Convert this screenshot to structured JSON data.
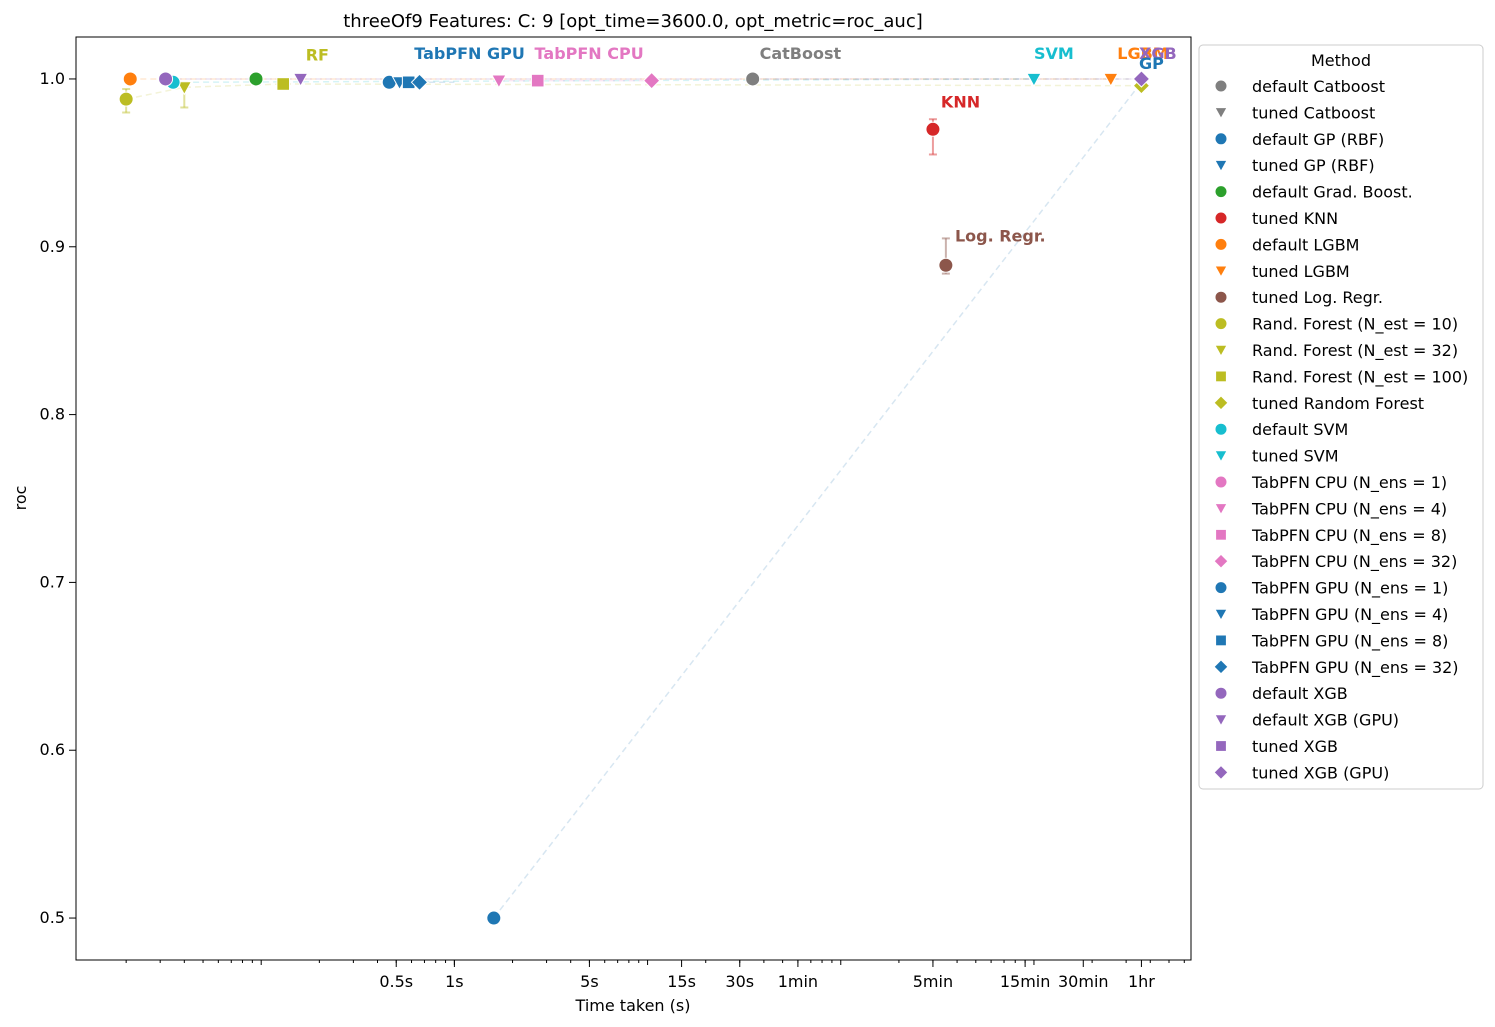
{
  "chart_data": {
    "type": "scatter",
    "title": "threeOf9 Features: C: 9 [opt_time=3600.0, opt_metric=roc_auc]",
    "xlabel": "Time taken (s)",
    "ylabel": "roc",
    "x_scale": "log",
    "xlim": [
      0.011,
      6500
    ],
    "ylim": [
      0.475,
      1.025
    ],
    "x_ticks": [
      {
        "value": 0.5,
        "label": "0.5s"
      },
      {
        "value": 1,
        "label": "1s"
      },
      {
        "value": 5,
        "label": "5s"
      },
      {
        "value": 15,
        "label": "15s"
      },
      {
        "value": 30,
        "label": "30s"
      },
      {
        "value": 60,
        "label": "1min"
      },
      {
        "value": 300,
        "label": "5min"
      },
      {
        "value": 900,
        "label": "15min"
      },
      {
        "value": 1800,
        "label": "30min"
      },
      {
        "value": 3600,
        "label": "1hr"
      }
    ],
    "y_ticks": [
      {
        "value": 0.5,
        "label": "0.5"
      },
      {
        "value": 0.6,
        "label": "0.6"
      },
      {
        "value": 0.7,
        "label": "0.7"
      },
      {
        "value": 0.8,
        "label": "0.8"
      },
      {
        "value": 0.9,
        "label": "0.9"
      },
      {
        "value": 1.0,
        "label": "1.0"
      }
    ],
    "grid": false,
    "legend_title": "Method",
    "legend_placement": "outside-right",
    "series": [
      {
        "name": "default Catboost",
        "marker": "circle",
        "color": "#7f7f7f",
        "x": 35,
        "y": 1.0
      },
      {
        "name": "tuned Catboost",
        "marker": "triangle",
        "color": "#7f7f7f",
        "x": null,
        "y": null
      },
      {
        "name": "default GP (RBF)",
        "marker": "circle",
        "color": "#1f77b4",
        "x": 1.6,
        "y": 0.5
      },
      {
        "name": "tuned GP (RBF)",
        "marker": "triangle",
        "color": "#1f77b4",
        "x": 3600,
        "y": 0.998
      },
      {
        "name": "default Grad. Boost.",
        "marker": "circle",
        "color": "#2ca02c",
        "x": 0.094,
        "y": 1.0
      },
      {
        "name": "tuned KNN",
        "marker": "circle",
        "color": "#d62728",
        "x": 300,
        "y": 0.97,
        "err_low": 0.955,
        "err_high": 0.976
      },
      {
        "name": "default LGBM",
        "marker": "circle",
        "color": "#ff7f0e",
        "x": 0.021,
        "y": 1.0
      },
      {
        "name": "tuned LGBM",
        "marker": "triangle",
        "color": "#ff7f0e",
        "x": 2500,
        "y": 1.0
      },
      {
        "name": "tuned Log. Regr.",
        "marker": "circle",
        "color": "#8c564b",
        "x": 350,
        "y": 0.889,
        "err_low": 0.884,
        "err_high": 0.905
      },
      {
        "name": "Rand. Forest (N_est =  10)",
        "marker": "circle",
        "color": "#bcbd22",
        "x": 0.02,
        "y": 0.988,
        "err_low": 0.98,
        "err_high": 0.994
      },
      {
        "name": "Rand. Forest (N_est =  32)",
        "marker": "triangle",
        "color": "#bcbd22",
        "x": 0.04,
        "y": 0.995,
        "err_low": 0.983,
        "err_high": 0.998
      },
      {
        "name": "Rand. Forest (N_est = 100)",
        "marker": "square",
        "color": "#bcbd22",
        "x": 0.13,
        "y": 0.997
      },
      {
        "name": "tuned Random Forest",
        "marker": "diamond",
        "color": "#bcbd22",
        "x": 3600,
        "y": 0.996
      },
      {
        "name": "default SVM",
        "marker": "circle",
        "color": "#17becf",
        "x": 0.035,
        "y": 0.998
      },
      {
        "name": "tuned SVM",
        "marker": "triangle",
        "color": "#17becf",
        "x": 1000,
        "y": 1.0
      },
      {
        "name": "TabPFN CPU (N_ens =  1)",
        "marker": "circle",
        "color": "#e377c2",
        "x": null,
        "y": null
      },
      {
        "name": "TabPFN CPU (N_ens =  4)",
        "marker": "triangle",
        "color": "#e377c2",
        "x": 1.7,
        "y": 0.999
      },
      {
        "name": "TabPFN CPU (N_ens =  8)",
        "marker": "square",
        "color": "#e377c2",
        "x": 2.7,
        "y": 0.999
      },
      {
        "name": "TabPFN CPU (N_ens = 32)",
        "marker": "diamond",
        "color": "#e377c2",
        "x": 10.5,
        "y": 0.999
      },
      {
        "name": "TabPFN GPU (N_ens =  1)",
        "marker": "circle",
        "color": "#1f77b4",
        "x": 0.46,
        "y": 0.998
      },
      {
        "name": "TabPFN GPU (N_ens =  4)",
        "marker": "triangle",
        "color": "#1f77b4",
        "x": 0.52,
        "y": 0.998
      },
      {
        "name": "TabPFN GPU (N_ens =  8)",
        "marker": "square",
        "color": "#1f77b4",
        "x": 0.58,
        "y": 0.998
      },
      {
        "name": "TabPFN GPU (N_ens = 32)",
        "marker": "diamond",
        "color": "#1f77b4",
        "x": 0.66,
        "y": 0.998
      },
      {
        "name": "default XGB",
        "marker": "circle",
        "color": "#9467bd",
        "x": 0.032,
        "y": 1.0
      },
      {
        "name": "default XGB (GPU)",
        "marker": "triangle",
        "color": "#9467bd",
        "x": 0.16,
        "y": 1.0
      },
      {
        "name": "tuned XGB",
        "marker": "square",
        "color": "#9467bd",
        "x": null,
        "y": null
      },
      {
        "name": "tuned XGB (GPU)",
        "marker": "diamond",
        "color": "#9467bd",
        "x": 3600,
        "y": 1.0
      }
    ],
    "connectors": [
      {
        "color": "#1f77b4",
        "points": [
          [
            1.6,
            0.5
          ],
          [
            3600,
            0.998
          ]
        ]
      },
      {
        "color": "#bcbd22",
        "points": [
          [
            0.02,
            0.988
          ],
          [
            0.04,
            0.995
          ],
          [
            0.13,
            0.997
          ],
          [
            3600,
            0.996
          ]
        ]
      },
      {
        "color": "#ff7f0e",
        "points": [
          [
            0.021,
            1.0
          ],
          [
            2500,
            1.0
          ]
        ]
      },
      {
        "color": "#17becf",
        "points": [
          [
            0.035,
            0.998
          ],
          [
            1000,
            1.0
          ]
        ]
      },
      {
        "color": "#9467bd",
        "points": [
          [
            0.032,
            1.0
          ],
          [
            0.16,
            1.0
          ],
          [
            3600,
            1.0
          ]
        ]
      },
      {
        "color": "#e377c2",
        "points": [
          [
            1.7,
            0.999
          ],
          [
            2.7,
            0.999
          ],
          [
            10.5,
            0.999
          ]
        ]
      },
      {
        "color": "#1f77b4",
        "points": [
          [
            0.46,
            0.998
          ],
          [
            0.52,
            0.998
          ],
          [
            0.58,
            0.998
          ],
          [
            0.66,
            0.998
          ],
          [
            1.0,
            0.998
          ]
        ]
      },
      {
        "color": "#7f7f7f",
        "points": [
          [
            35,
            1.0
          ],
          [
            3600,
            1.0
          ]
        ]
      }
    ],
    "annotations": [
      {
        "text": "RF",
        "color": "#bcbd22",
        "x": 0.17,
        "y": 1.011
      },
      {
        "text": "TabPFN GPU",
        "color": "#1f77b4",
        "x": 0.62,
        "y": 1.012
      },
      {
        "text": "TabPFN CPU",
        "color": "#e377c2",
        "x": 2.6,
        "y": 1.012
      },
      {
        "text": "CatBoost",
        "color": "#7f7f7f",
        "x": 38,
        "y": 1.012
      },
      {
        "text": "SVM",
        "color": "#17becf",
        "x": 1000,
        "y": 1.012
      },
      {
        "text": "LGBM",
        "color": "#ff7f0e",
        "x": 2700,
        "y": 1.012
      },
      {
        "text": "XGB",
        "color": "#9467bd",
        "x": 3500,
        "y": 1.012
      },
      {
        "text": "GP",
        "color": "#1f77b4",
        "x": 3500,
        "y": 1.006
      },
      {
        "text": "KNN",
        "color": "#d62728",
        "x": 330,
        "y": 0.983
      },
      {
        "text": "Log. Regr.",
        "color": "#8c564b",
        "x": 390,
        "y": 0.903
      }
    ]
  }
}
